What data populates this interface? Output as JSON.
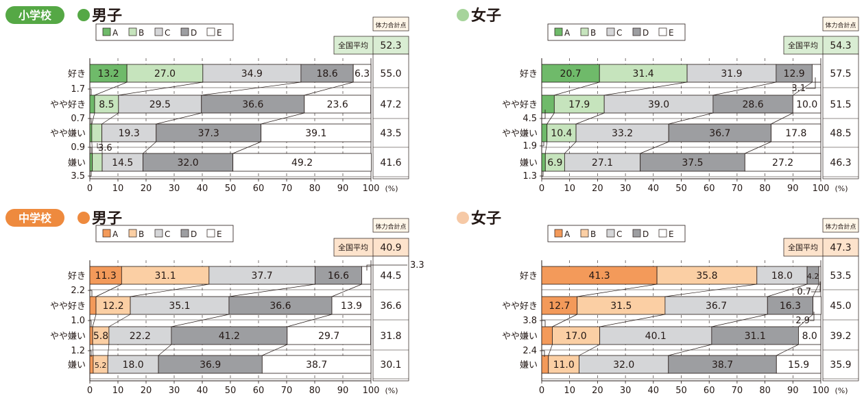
{
  "colors": {
    "elementary_accent": "#55a845",
    "junior_accent": "#ee8a3e",
    "green_a": "#6fba6a",
    "green_b": "#c6e4bd",
    "orange_a": "#f39a5a",
    "orange_b": "#fbcfa4",
    "gray_c": "#d5d6d8",
    "gray_d": "#9d9ea1",
    "white_e": "#ffffff",
    "girl_dot": "#f6c9a6",
    "elem_girl_dot": "#a6d49b"
  },
  "sections": [
    {
      "school_label": "小学校"
    },
    {
      "school_label": "中学校"
    }
  ],
  "common": {
    "fitness_header": "体力合計点",
    "national_avg_label": "全国平均",
    "legend_labels": [
      "A",
      "B",
      "C",
      "D",
      "E"
    ],
    "unit_label": "(%)",
    "x_ticks": [
      "0",
      "10",
      "20",
      "30",
      "40",
      "50",
      "60",
      "70",
      "80",
      "90",
      "100"
    ]
  },
  "chart_data": [
    {
      "type": "bar",
      "stacked": "horizontal-100%",
      "section": "小学校",
      "title": "男子",
      "categories": [
        "好き",
        "やや好き",
        "やや嫌い",
        "嫌い"
      ],
      "series": [
        {
          "name": "A",
          "values": [
            13.2,
            1.7,
            0.7,
            0.9
          ]
        },
        {
          "name": "B",
          "values": [
            27.0,
            8.5,
            3.6,
            3.5
          ]
        },
        {
          "name": "C",
          "values": [
            34.9,
            29.5,
            19.3,
            14.5
          ]
        },
        {
          "name": "D",
          "values": [
            18.6,
            36.6,
            37.3,
            32.0
          ]
        },
        {
          "name": "E",
          "values": [
            6.3,
            23.6,
            39.1,
            49.2
          ]
        }
      ],
      "segment_labels": [
        [
          "13.2",
          "27.0",
          "34.9",
          "18.6",
          "6.3"
        ],
        [
          "",
          "8.5",
          "29.5",
          "36.6",
          "23.6"
        ],
        [
          "",
          "",
          "19.3",
          "37.3",
          "39.1"
        ],
        [
          "",
          "",
          "14.5",
          "32.0",
          "49.2"
        ]
      ],
      "callouts": [
        "1.7",
        "0.7",
        "3.6",
        "0.9",
        "3.5"
      ],
      "fitness_scores": [
        "55.0",
        "47.2",
        "43.5",
        "41.6"
      ],
      "national_avg": "52.3",
      "xlim": [
        0,
        100
      ]
    },
    {
      "type": "bar",
      "stacked": "horizontal-100%",
      "section": "小学校",
      "title": "女子",
      "categories": [
        "好き",
        "やや好き",
        "やや嫌い",
        "嫌い"
      ],
      "series": [
        {
          "name": "A",
          "values": [
            20.7,
            4.5,
            1.9,
            1.3
          ]
        },
        {
          "name": "B",
          "values": [
            31.4,
            17.9,
            10.4,
            6.9
          ]
        },
        {
          "name": "C",
          "values": [
            31.9,
            39.0,
            33.2,
            27.1
          ]
        },
        {
          "name": "D",
          "values": [
            12.9,
            28.6,
            36.7,
            37.5
          ]
        },
        {
          "name": "E",
          "values": [
            3.1,
            10.0,
            17.8,
            27.2
          ]
        }
      ],
      "segment_labels": [
        [
          "20.7",
          "31.4",
          "31.9",
          "12.9",
          ""
        ],
        [
          "",
          "17.9",
          "39.0",
          "28.6",
          "10.0"
        ],
        [
          "",
          "10.4",
          "33.2",
          "36.7",
          "17.8"
        ],
        [
          "",
          "6.9",
          "27.1",
          "37.5",
          "27.2"
        ]
      ],
      "callouts": [
        "3.1",
        "4.5",
        "1.9",
        "1.3"
      ],
      "fitness_scores": [
        "57.5",
        "51.5",
        "48.5",
        "46.3"
      ],
      "national_avg": "54.3",
      "xlim": [
        0,
        100
      ]
    },
    {
      "type": "bar",
      "stacked": "horizontal-100%",
      "section": "中学校",
      "title": "男子",
      "categories": [
        "好き",
        "やや好き",
        "やや嫌い",
        "嫌い"
      ],
      "series": [
        {
          "name": "A",
          "values": [
            11.3,
            2.2,
            1.0,
            1.2
          ]
        },
        {
          "name": "B",
          "values": [
            31.1,
            12.2,
            5.8,
            5.2
          ]
        },
        {
          "name": "C",
          "values": [
            37.7,
            35.1,
            22.2,
            18.0
          ]
        },
        {
          "name": "D",
          "values": [
            16.6,
            36.6,
            41.2,
            36.9
          ]
        },
        {
          "name": "E",
          "values": [
            3.3,
            13.9,
            29.7,
            38.7
          ]
        }
      ],
      "segment_labels": [
        [
          "11.3",
          "31.1",
          "37.7",
          "16.6",
          ""
        ],
        [
          "",
          "12.2",
          "35.1",
          "36.6",
          "13.9"
        ],
        [
          "",
          "5.8",
          "22.2",
          "41.2",
          "29.7"
        ],
        [
          "",
          "5.2",
          "18.0",
          "36.9",
          "38.7"
        ]
      ],
      "callouts": [
        "3.3",
        "2.2",
        "1.0",
        "1.2"
      ],
      "fitness_scores": [
        "44.5",
        "36.6",
        "31.8",
        "30.1"
      ],
      "national_avg": "40.9",
      "xlim": [
        0,
        100
      ]
    },
    {
      "type": "bar",
      "stacked": "horizontal-100%",
      "section": "中学校",
      "title": "女子",
      "categories": [
        "好き",
        "やや好き",
        "やや嫌い",
        "嫌い"
      ],
      "series": [
        {
          "name": "A",
          "values": [
            41.3,
            12.7,
            3.8,
            2.4
          ]
        },
        {
          "name": "B",
          "values": [
            35.8,
            31.5,
            17.0,
            11.0
          ]
        },
        {
          "name": "C",
          "values": [
            18.0,
            36.7,
            40.1,
            32.0
          ]
        },
        {
          "name": "D",
          "values": [
            4.2,
            16.3,
            31.1,
            38.7
          ]
        },
        {
          "name": "E",
          "values": [
            0.7,
            2.9,
            8.0,
            15.9
          ]
        }
      ],
      "segment_labels": [
        [
          "41.3",
          "35.8",
          "18.0",
          "4.2",
          ""
        ],
        [
          "12.7",
          "31.5",
          "36.7",
          "16.3",
          ""
        ],
        [
          "",
          "17.0",
          "40.1",
          "31.1",
          "8.0"
        ],
        [
          "",
          "11.0",
          "32.0",
          "38.7",
          "15.9"
        ]
      ],
      "callouts": [
        "0.7",
        "2.9",
        "3.8",
        "2.4"
      ],
      "fitness_scores": [
        "53.5",
        "45.0",
        "39.2",
        "35.9"
      ],
      "national_avg": "47.3",
      "xlim": [
        0,
        100
      ]
    }
  ]
}
